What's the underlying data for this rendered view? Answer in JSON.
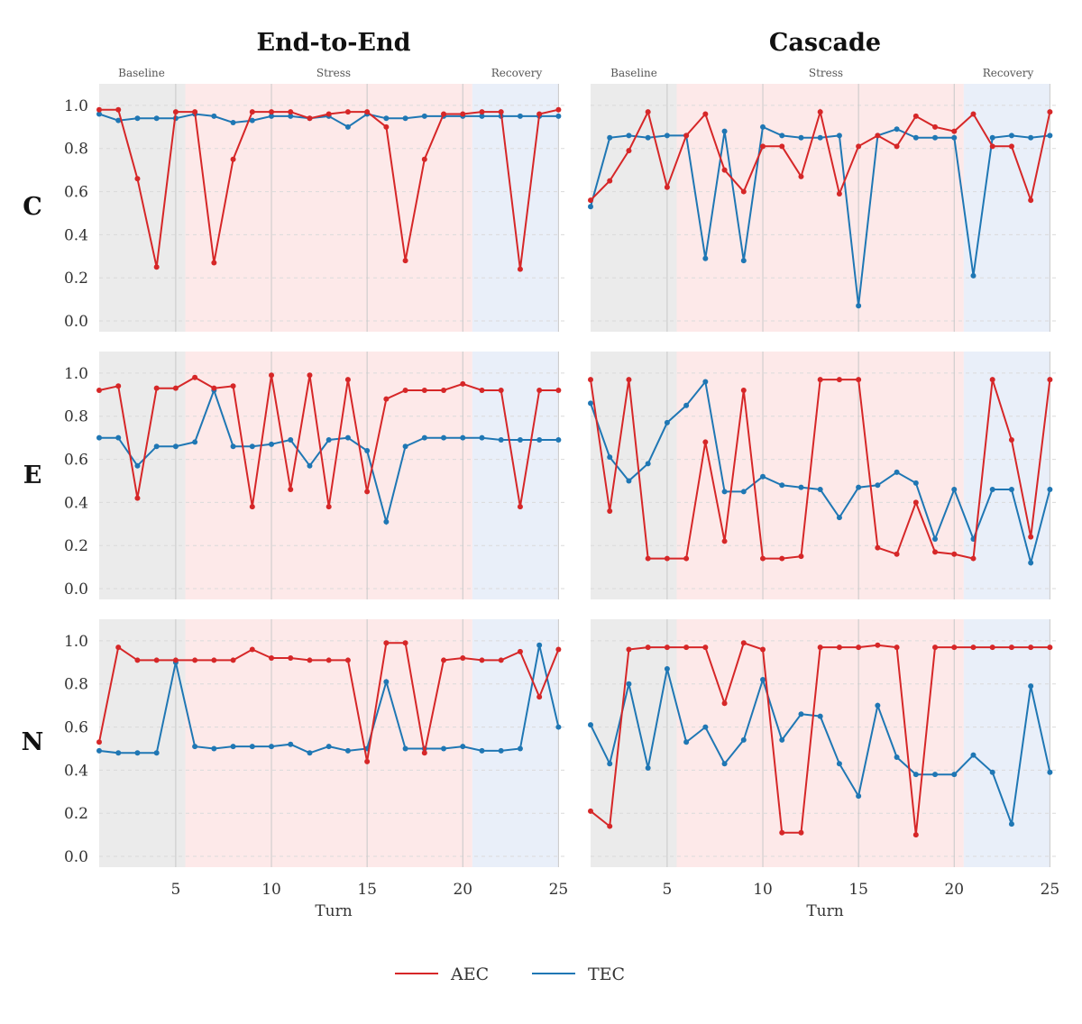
{
  "columns": [
    "End-to-End",
    "Cascade"
  ],
  "rows": [
    "C",
    "E",
    "N"
  ],
  "phases": [
    {
      "label": "Baseline",
      "start": 1,
      "end": 5.5,
      "color": "#ebebeb"
    },
    {
      "label": "Stress",
      "start": 5.5,
      "end": 20.5,
      "color": "#fde9e9"
    },
    {
      "label": "Recovery",
      "start": 20.5,
      "end": 25,
      "color": "#e9eff9"
    }
  ],
  "xlabel": "Turn",
  "x_ticks": [
    5,
    10,
    15,
    20,
    25
  ],
  "y_ticks": [
    "0.0",
    "0.2",
    "0.4",
    "0.6",
    "0.8",
    "1.0"
  ],
  "legend": [
    {
      "name": "AEC",
      "color": "#d62728"
    },
    {
      "name": "TEC",
      "color": "#1f77b4"
    }
  ],
  "chart_data": [
    {
      "type": "line",
      "panel": "End-to-End C",
      "column": "End-to-End",
      "row": "C",
      "xlabel": "",
      "ylabel": "",
      "xlim": [
        1,
        25
      ],
      "ylim": [
        0,
        1.05
      ],
      "x": [
        1,
        2,
        3,
        4,
        5,
        6,
        7,
        8,
        9,
        10,
        11,
        12,
        13,
        14,
        15,
        16,
        17,
        18,
        19,
        20,
        21,
        22,
        23,
        24,
        25
      ],
      "series": [
        {
          "name": "AEC",
          "color": "#d62728",
          "values": [
            0.98,
            0.98,
            0.66,
            0.25,
            0.97,
            0.97,
            0.27,
            0.75,
            0.97,
            0.97,
            0.97,
            0.94,
            0.96,
            0.97,
            0.97,
            0.9,
            0.28,
            0.75,
            0.96,
            0.96,
            0.97,
            0.97,
            0.24,
            0.96,
            0.98
          ]
        },
        {
          "name": "TEC",
          "color": "#1f77b4",
          "values": [
            0.96,
            0.93,
            0.94,
            0.94,
            0.94,
            0.96,
            0.95,
            0.92,
            0.93,
            0.95,
            0.95,
            0.94,
            0.95,
            0.9,
            0.96,
            0.94,
            0.94,
            0.95,
            0.95,
            0.95,
            0.95,
            0.95,
            0.95,
            0.95,
            0.95
          ]
        }
      ]
    },
    {
      "type": "line",
      "panel": "Cascade C",
      "column": "Cascade",
      "row": "C",
      "xlabel": "",
      "ylabel": "",
      "xlim": [
        1,
        25
      ],
      "ylim": [
        0,
        1.05
      ],
      "x": [
        1,
        2,
        3,
        4,
        5,
        6,
        7,
        8,
        9,
        10,
        11,
        12,
        13,
        14,
        15,
        16,
        17,
        18,
        19,
        20,
        21,
        22,
        23,
        24,
        25
      ],
      "series": [
        {
          "name": "AEC",
          "color": "#d62728",
          "values": [
            0.56,
            0.65,
            0.79,
            0.97,
            0.62,
            0.86,
            0.96,
            0.7,
            0.6,
            0.81,
            0.81,
            0.67,
            0.97,
            0.59,
            0.81,
            0.86,
            0.81,
            0.95,
            0.9,
            0.88,
            0.96,
            0.81,
            0.81,
            0.56,
            0.97
          ]
        },
        {
          "name": "TEC",
          "color": "#1f77b4",
          "values": [
            0.53,
            0.85,
            0.86,
            0.85,
            0.86,
            0.86,
            0.29,
            0.88,
            0.28,
            0.9,
            0.86,
            0.85,
            0.85,
            0.86,
            0.07,
            0.86,
            0.89,
            0.85,
            0.85,
            0.85,
            0.21,
            0.85,
            0.86,
            0.85,
            0.86
          ]
        }
      ]
    },
    {
      "type": "line",
      "panel": "End-to-End E",
      "column": "End-to-End",
      "row": "E",
      "xlabel": "",
      "ylabel": "",
      "xlim": [
        1,
        25
      ],
      "ylim": [
        0,
        1.05
      ],
      "x": [
        1,
        2,
        3,
        4,
        5,
        6,
        7,
        8,
        9,
        10,
        11,
        12,
        13,
        14,
        15,
        16,
        17,
        18,
        19,
        20,
        21,
        22,
        23,
        24,
        25
      ],
      "series": [
        {
          "name": "AEC",
          "color": "#d62728",
          "values": [
            0.92,
            0.94,
            0.42,
            0.93,
            0.93,
            0.98,
            0.93,
            0.94,
            0.38,
            0.99,
            0.46,
            0.99,
            0.38,
            0.97,
            0.45,
            0.88,
            0.92,
            0.92,
            0.92,
            0.95,
            0.92,
            0.92,
            0.38,
            0.92,
            0.92
          ]
        },
        {
          "name": "TEC",
          "color": "#1f77b4",
          "values": [
            0.7,
            0.7,
            0.57,
            0.66,
            0.66,
            0.68,
            0.92,
            0.66,
            0.66,
            0.67,
            0.69,
            0.57,
            0.69,
            0.7,
            0.64,
            0.31,
            0.66,
            0.7,
            0.7,
            0.7,
            0.7,
            0.69,
            0.69,
            0.69,
            0.69
          ]
        }
      ]
    },
    {
      "type": "line",
      "panel": "Cascade E",
      "column": "Cascade",
      "row": "E",
      "xlabel": "",
      "ylabel": "",
      "xlim": [
        1,
        25
      ],
      "ylim": [
        0,
        1.05
      ],
      "x": [
        1,
        2,
        3,
        4,
        5,
        6,
        7,
        8,
        9,
        10,
        11,
        12,
        13,
        14,
        15,
        16,
        17,
        18,
        19,
        20,
        21,
        22,
        23,
        24,
        25
      ],
      "series": [
        {
          "name": "AEC",
          "color": "#d62728",
          "values": [
            0.97,
            0.36,
            0.97,
            0.14,
            0.14,
            0.14,
            0.68,
            0.22,
            0.92,
            0.14,
            0.14,
            0.15,
            0.97,
            0.97,
            0.97,
            0.19,
            0.16,
            0.4,
            0.17,
            0.16,
            0.14,
            0.97,
            0.69,
            0.24,
            0.97
          ]
        },
        {
          "name": "TEC",
          "color": "#1f77b4",
          "values": [
            0.86,
            0.61,
            0.5,
            0.58,
            0.77,
            0.85,
            0.96,
            0.45,
            0.45,
            0.52,
            0.48,
            0.47,
            0.46,
            0.33,
            0.47,
            0.48,
            0.54,
            0.49,
            0.23,
            0.46,
            0.23,
            0.46,
            0.46,
            0.12,
            0.46
          ]
        }
      ]
    },
    {
      "type": "line",
      "panel": "End-to-End N",
      "column": "End-to-End",
      "row": "N",
      "xlabel": "Turn",
      "ylabel": "",
      "xlim": [
        1,
        25
      ],
      "ylim": [
        0,
        1.05
      ],
      "x": [
        1,
        2,
        3,
        4,
        5,
        6,
        7,
        8,
        9,
        10,
        11,
        12,
        13,
        14,
        15,
        16,
        17,
        18,
        19,
        20,
        21,
        22,
        23,
        24,
        25
      ],
      "series": [
        {
          "name": "AEC",
          "color": "#d62728",
          "values": [
            0.53,
            0.97,
            0.91,
            0.91,
            0.91,
            0.91,
            0.91,
            0.91,
            0.96,
            0.92,
            0.92,
            0.91,
            0.91,
            0.91,
            0.44,
            0.99,
            0.99,
            0.48,
            0.91,
            0.92,
            0.91,
            0.91,
            0.95,
            0.74,
            0.96
          ]
        },
        {
          "name": "TEC",
          "color": "#1f77b4",
          "values": [
            0.49,
            0.48,
            0.48,
            0.48,
            0.9,
            0.51,
            0.5,
            0.51,
            0.51,
            0.51,
            0.52,
            0.48,
            0.51,
            0.49,
            0.5,
            0.81,
            0.5,
            0.5,
            0.5,
            0.51,
            0.49,
            0.49,
            0.5,
            0.98,
            0.6
          ]
        }
      ]
    },
    {
      "type": "line",
      "panel": "Cascade N",
      "column": "Cascade",
      "row": "N",
      "xlabel": "Turn",
      "ylabel": "",
      "xlim": [
        1,
        25
      ],
      "ylim": [
        0,
        1.05
      ],
      "x": [
        1,
        2,
        3,
        4,
        5,
        6,
        7,
        8,
        9,
        10,
        11,
        12,
        13,
        14,
        15,
        16,
        17,
        18,
        19,
        20,
        21,
        22,
        23,
        24,
        25
      ],
      "series": [
        {
          "name": "AEC",
          "color": "#d62728",
          "values": [
            0.21,
            0.14,
            0.96,
            0.97,
            0.97,
            0.97,
            0.97,
            0.71,
            0.99,
            0.96,
            0.11,
            0.11,
            0.97,
            0.97,
            0.97,
            0.98,
            0.97,
            0.1,
            0.97,
            0.97,
            0.97,
            0.97,
            0.97,
            0.97,
            0.97
          ]
        },
        {
          "name": "TEC",
          "color": "#1f77b4",
          "values": [
            0.61,
            0.43,
            0.8,
            0.41,
            0.87,
            0.53,
            0.6,
            0.43,
            0.54,
            0.82,
            0.54,
            0.66,
            0.65,
            0.43,
            0.28,
            0.7,
            0.46,
            0.38,
            0.38,
            0.38,
            0.47,
            0.39,
            0.15,
            0.79,
            0.39
          ]
        }
      ]
    }
  ]
}
